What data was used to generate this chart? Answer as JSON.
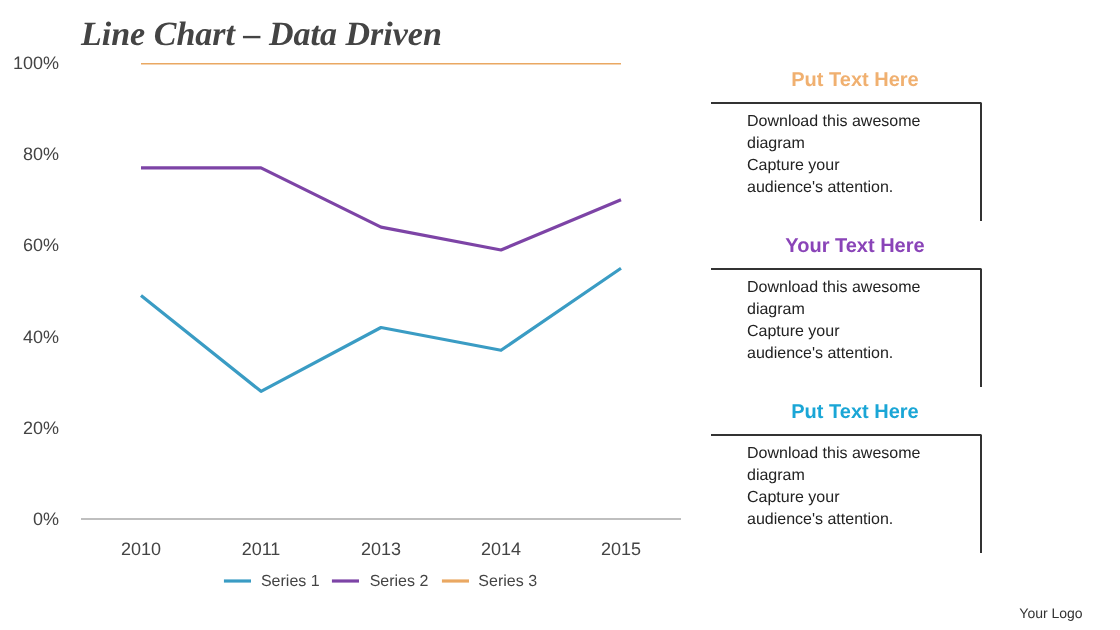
{
  "chart_data": [
    {
      "type": "line",
      "title": "Line Chart – Data Driven",
      "categories": [
        "2010",
        "2011",
        "2013",
        "2014",
        "2015"
      ],
      "series": [
        {
          "name": "Series 1",
          "color": "#3a9cc4",
          "values": [
            49,
            28,
            42,
            37,
            55
          ]
        },
        {
          "name": "Series 2",
          "color": "#7d44a6",
          "values": [
            77,
            77,
            64,
            59,
            70
          ]
        },
        {
          "name": "Series 3",
          "color": "#eaa862",
          "values": [
            100,
            100,
            100,
            100,
            100
          ]
        }
      ],
      "ylim": [
        0,
        100
      ],
      "yticks": [
        {
          "value": 0,
          "label": "0%"
        },
        {
          "value": 20,
          "label": "20%"
        },
        {
          "value": 40,
          "label": "40%"
        },
        {
          "value": 60,
          "label": "60%"
        },
        {
          "value": 80,
          "label": "80%"
        },
        {
          "value": 100,
          "label": "100%"
        }
      ],
      "grid": false,
      "legend": "bottom",
      "marker": "none",
      "line_style": "solid"
    },
    {
      "type": "other",
      "colors": [
        "#f0b070",
        "#8a44b8",
        "#1aa6d6"
      ],
      "annotations": [
        "Put Text Here",
        "Download this awesome diagram",
        "Capture your audience's attention.",
        "Your Text Here",
        "Download this awesome diagram",
        "Capture your audience's attention.",
        "Put Text Here",
        "Download this awesome diagram",
        "Capture your audience's attention.",
        "Your Logo"
      ]
    }
  ]
}
